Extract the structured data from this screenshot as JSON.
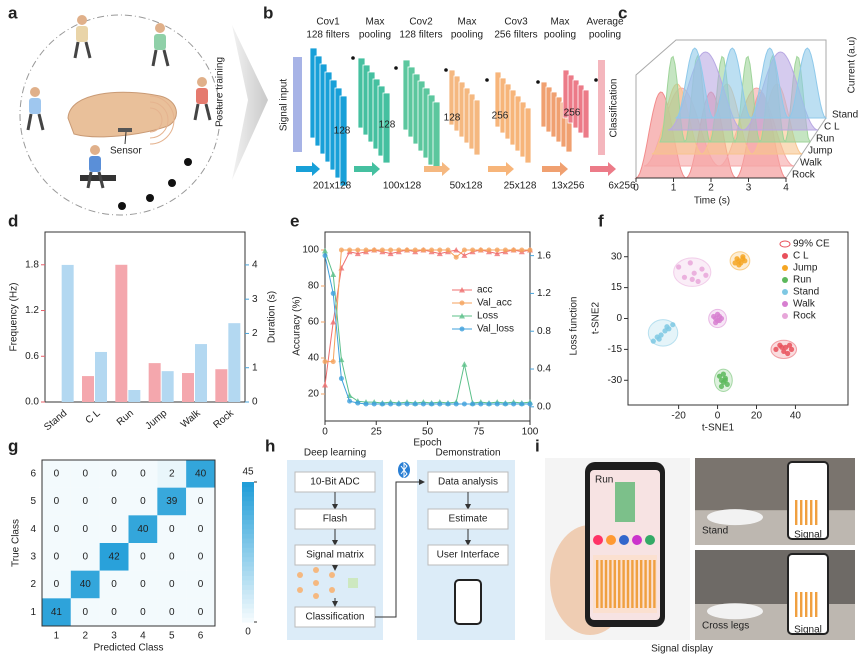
{
  "panel_labels": [
    "a",
    "b",
    "c",
    "d",
    "e",
    "f",
    "g",
    "h",
    "i"
  ],
  "panel_a": {
    "sensor": "Sensor",
    "posture_training": "Posture training"
  },
  "panel_b": {
    "signal_input": "Signal input",
    "classification": "Classification",
    "layers": [
      {
        "name": "Cov1",
        "detail": "128 filters"
      },
      {
        "name": "Max",
        "detail": "pooling"
      },
      {
        "name": "Cov2",
        "detail": "128 filters"
      },
      {
        "name": "Max",
        "detail": "pooling"
      },
      {
        "name": "Cov3",
        "detail": "256 filters"
      },
      {
        "name": "Max",
        "detail": "pooling"
      },
      {
        "name": "Average",
        "detail": "pooling"
      }
    ],
    "depths": [
      128,
      128,
      128,
      256,
      256
    ],
    "sizes": [
      "201x128",
      "100x128",
      "50x128",
      "25x128",
      "13x256",
      "6x256"
    ]
  },
  "chart_data": [
    {
      "type": "waterfall",
      "xlabel": "Time (s)",
      "ylabel": "Current (a.u)",
      "xlim": [
        0,
        4
      ],
      "xticks": [
        0,
        1,
        2,
        3,
        4
      ],
      "categories": [
        "Stand",
        "C L",
        "Run",
        "Jump",
        "Walk",
        "Rock"
      ],
      "colors": [
        "#8fc9ea",
        "#b9a9e3",
        "#9fd49a",
        "#f7c48e",
        "#f6a7a7",
        "#f28c8c"
      ]
    },
    {
      "type": "bar",
      "ylabel": "Frequency (Hz)",
      "y2label": "Duration (s)",
      "axis_colors": [
        "#e8606a",
        "#4aa3d9"
      ],
      "categories": [
        "Stand",
        "C L",
        "Run",
        "Jump",
        "Walk",
        "Rock"
      ],
      "ylim": [
        0,
        2.23
      ],
      "yticks": [
        {
          "value": 0,
          "label": "0.0"
        },
        0.6,
        1.2,
        1.8
      ],
      "y2lim": [
        0,
        4.96
      ],
      "y2ticks": [
        0,
        1,
        2,
        3,
        4
      ],
      "series": [
        {
          "color": "#f4a7ad",
          "values": [
            null,
            0.34,
            1.8,
            0.51,
            0.38,
            0.43
          ]
        },
        {
          "color": "#b3d8f1",
          "axis": "y2",
          "values": [
            4.0,
            1.46,
            0.35,
            0.9,
            1.69,
            2.3
          ]
        }
      ]
    },
    {
      "type": "line",
      "xlabel": "Epoch",
      "ylabel": "Accuracy (%)",
      "y2label": "Loss function",
      "axis_colors": [
        "#f0a46a",
        "#4aa3d9"
      ],
      "x": [
        0,
        4,
        8,
        12,
        16,
        20,
        24,
        28,
        32,
        36,
        40,
        44,
        48,
        52,
        56,
        60,
        64,
        68,
        72,
        76,
        80,
        84,
        88,
        92,
        96,
        100
      ],
      "xlim": [
        0,
        100
      ],
      "xticks": [
        0,
        25,
        50,
        75,
        100
      ],
      "ylim": [
        5,
        110
      ],
      "yticks": [
        20,
        40,
        60,
        80,
        100
      ],
      "y2lim": [
        -0.15,
        1.85
      ],
      "y2ticks": [
        {
          "value": 0,
          "label": "0.0"
        },
        0.4,
        0.8,
        1.2,
        1.6
      ],
      "series": [
        {
          "name": "acc",
          "color": "#ef6f6f",
          "marker": "triangle",
          "values": [
            25,
            60,
            90,
            99,
            98,
            99,
            100,
            99,
            98,
            99,
            100,
            99,
            100,
            99,
            98,
            99,
            100,
            97,
            99,
            100,
            99,
            98,
            99,
            100,
            99,
            100
          ]
        },
        {
          "name": "Val_acc",
          "color": "#f5a25d",
          "marker": "circle",
          "values": [
            38,
            38,
            100,
            100,
            100,
            100,
            100,
            100,
            100,
            100,
            100,
            100,
            100,
            100,
            100,
            100,
            96,
            100,
            100,
            100,
            100,
            100,
            100,
            100,
            100,
            100
          ]
        },
        {
          "name": "Loss",
          "color": "#5cc08a",
          "marker": "triangle",
          "axis": "y2",
          "values": [
            1.65,
            1.4,
            0.5,
            0.12,
            0.06,
            0.05,
            0.05,
            0.04,
            0.05,
            0.04,
            0.05,
            0.04,
            0.05,
            0.04,
            0.05,
            0.04,
            0.05,
            0.45,
            0.04,
            0.05,
            0.04,
            0.05,
            0.04,
            0.05,
            0.04,
            0.05
          ]
        },
        {
          "name": "Val_loss",
          "color": "#3ea0dc",
          "marker": "circle",
          "axis": "y2",
          "values": [
            1.6,
            1.2,
            0.3,
            0.06,
            0.04,
            0.03,
            0.03,
            0.03,
            0.03,
            0.03,
            0.03,
            0.03,
            0.03,
            0.03,
            0.03,
            0.03,
            0.03,
            0.03,
            0.03,
            0.03,
            0.03,
            0.03,
            0.03,
            0.03,
            0.03,
            0.03
          ]
        }
      ]
    },
    {
      "type": "scatter",
      "xlabel": "t-SNE1",
      "ylabel": "t-SNE2",
      "ellipse_label": "99% CE",
      "xlim": [
        -46,
        67
      ],
      "xticks": [
        -20,
        0,
        20,
        40
      ],
      "ylim": [
        -42,
        42
      ],
      "yticks": [
        -30,
        -15,
        0,
        15,
        30
      ],
      "series": [
        {
          "name": "C L",
          "color": "#e8505b",
          "x": [
            30,
            32,
            34,
            35,
            36,
            38,
            33,
            37
          ],
          "y": [
            -15,
            -13,
            -16,
            -14,
            -17,
            -15,
            -14,
            -13
          ]
        },
        {
          "name": "Jump",
          "color": "#f5a623",
          "x": [
            9,
            10,
            11,
            12,
            13,
            14,
            11,
            13
          ],
          "y": [
            27,
            29,
            28,
            27,
            29,
            28,
            26,
            30
          ]
        },
        {
          "name": "Run",
          "color": "#5cb85c",
          "x": [
            1,
            2,
            3,
            4,
            5,
            3,
            2,
            4
          ],
          "y": [
            -28,
            -30,
            -31,
            -29,
            -32,
            -27,
            -33,
            -30
          ]
        },
        {
          "name": "Stand",
          "color": "#7ec8e3",
          "x": [
            -33,
            -31,
            -29,
            -27,
            -25,
            -23,
            -30,
            -26
          ],
          "y": [
            -11,
            -9,
            -8,
            -6,
            -5,
            -3,
            -10,
            -4
          ]
        },
        {
          "name": "Walk",
          "color": "#d77fd0",
          "x": [
            -2,
            -1,
            0,
            1,
            2,
            -1,
            1,
            0
          ],
          "y": [
            1,
            0,
            2,
            -1,
            0,
            -2,
            1,
            -1
          ]
        },
        {
          "name": "Rock",
          "color": "#e7a6d9",
          "x": [
            -20,
            -17,
            -14,
            -12,
            -10,
            -8,
            -6,
            -13
          ],
          "y": [
            25,
            20,
            27,
            22,
            18,
            24,
            21,
            19
          ]
        }
      ]
    },
    {
      "type": "heatmap",
      "xlabel": "Predicted Class",
      "ylabel": "True Class",
      "x": [
        1,
        2,
        3,
        4,
        5,
        6
      ],
      "y": [
        6,
        5,
        4,
        3,
        2,
        1
      ],
      "values": [
        [
          0,
          0,
          0,
          0,
          2,
          40
        ],
        [
          0,
          0,
          0,
          0,
          39,
          0
        ],
        [
          0,
          0,
          0,
          40,
          0,
          0
        ],
        [
          0,
          0,
          42,
          0,
          0,
          0
        ],
        [
          0,
          40,
          0,
          0,
          0,
          0
        ],
        [
          41,
          0,
          0,
          0,
          0,
          0
        ]
      ],
      "clim": [
        0,
        45
      ],
      "cticks": [
        0,
        45
      ],
      "colors": [
        "#f3fafd",
        "#1b9bd7"
      ]
    }
  ],
  "panel_h": {
    "left_title": "Deep learning",
    "right_title": "Demonstration",
    "left_steps": [
      "10-Bit ADC",
      "Flash",
      "Signal matrix",
      "Classification"
    ],
    "right_steps": [
      "Data analysis",
      "Estimate",
      "User Interface"
    ]
  },
  "panel_i": {
    "photo_labels": [
      "Stand",
      "Cross legs"
    ],
    "signal_tags": [
      "Signal",
      "Signal"
    ],
    "caption": "Signal display",
    "phone_label": "Run"
  }
}
